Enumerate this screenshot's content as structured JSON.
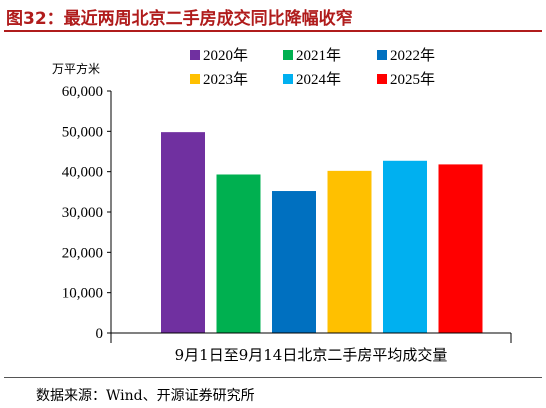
{
  "header": {
    "title": "图32：最近两周北京二手房成交同比降幅收窄"
  },
  "footer": {
    "source": "数据来源：Wind、开源证券研究所"
  },
  "chart_data": {
    "type": "bar",
    "title": "",
    "unit_label": "万平方米",
    "categories": [
      "9月1日至9月14日北京二手房平均成交量"
    ],
    "series": [
      {
        "name": "2020年",
        "values": [
          49800
        ],
        "color": "#7030a0"
      },
      {
        "name": "2021年",
        "values": [
          39300
        ],
        "color": "#00b050"
      },
      {
        "name": "2022年",
        "values": [
          35200
        ],
        "color": "#0070c0"
      },
      {
        "name": "2023年",
        "values": [
          40200
        ],
        "color": "#ffc000"
      },
      {
        "name": "2024年",
        "values": [
          42700
        ],
        "color": "#00b0f0"
      },
      {
        "name": "2025年",
        "values": [
          41800
        ],
        "color": "#ff0000"
      }
    ],
    "y_ticks": [
      "0",
      "10,000",
      "20,000",
      "30,000",
      "40,000",
      "50,000",
      "60,000"
    ],
    "ylim": [
      0,
      60000
    ],
    "grid": false,
    "legend_position": "top"
  }
}
